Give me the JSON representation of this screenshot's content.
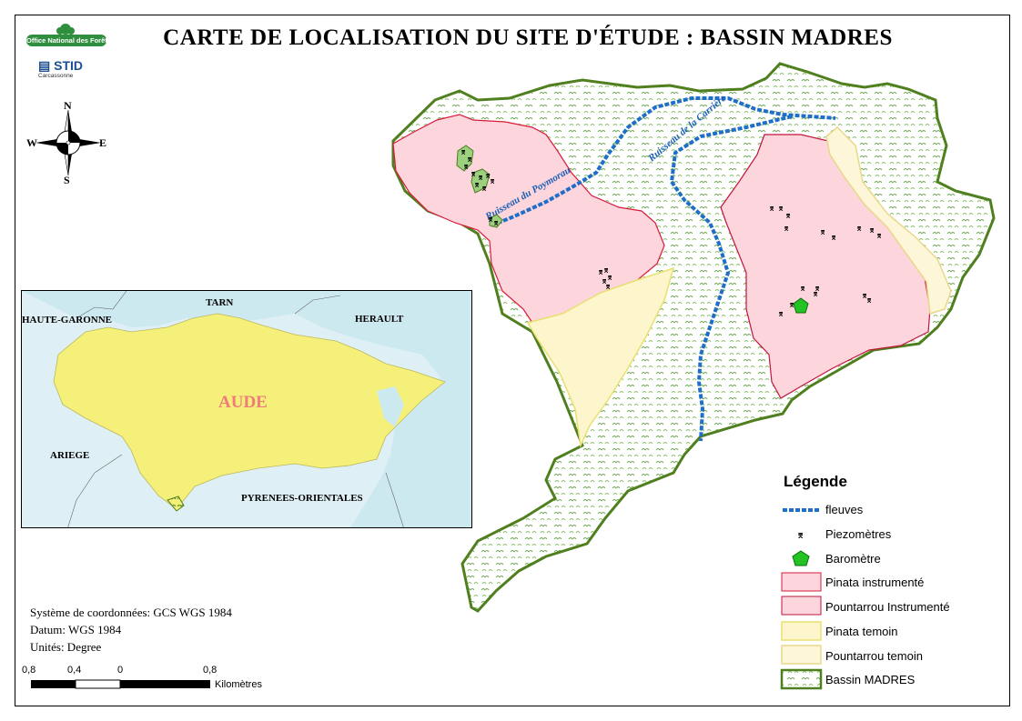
{
  "title": "CARTE DE  LOCALISATION  DU  SITE D'ÉTUDE : BASSIN  MADRES",
  "logos": {
    "onf": "Office National des Forêts",
    "stid": "STID",
    "stid_sub": "Carcassonne"
  },
  "compass": {
    "north": "N",
    "south": "S",
    "east": "E",
    "west": "W"
  },
  "rivers": [
    {
      "name": "Ruisseau du Poymorau"
    },
    {
      "name": "Ruisseau de la Carrière"
    }
  ],
  "inset": {
    "regions": [
      "HAUTE-GARONNE",
      "TARN",
      "HERAULT",
      "ARIEGE",
      "PYRENEES-ORIENTALES"
    ],
    "highlight": "AUDE"
  },
  "coordinate_info": {
    "system": "Système de coordonnées: GCS WGS 1984",
    "datum": "Datum: WGS 1984",
    "units": "Unités: Degree"
  },
  "scale_bar": {
    "ticks": [
      "0,8",
      "0,4",
      "0",
      "0,8"
    ],
    "unit": "Kilomètres"
  },
  "legend": {
    "title": "Légende",
    "items": [
      {
        "label": "fleuves",
        "symbol": "river-line",
        "color": "#1f6fc8"
      },
      {
        "label": "Piezomètres",
        "symbol": "piezometer-mark",
        "color": "#000000"
      },
      {
        "label": "Baromètre",
        "symbol": "pentagon",
        "color": "#22c322"
      },
      {
        "label": "Pinata instrumenté",
        "symbol": "fill",
        "color": "#fcd5dd",
        "border": "#d81b3b"
      },
      {
        "label": "Pountarrou Instrumenté",
        "symbol": "fill",
        "color": "#fcd5dd",
        "border": "#c0143c"
      },
      {
        "label": "Pinata temoin",
        "symbol": "fill",
        "color": "#fdf6c8",
        "border": "#e8e070"
      },
      {
        "label": "Pountarrou temoin",
        "symbol": "fill",
        "color": "#fdf6d8",
        "border": "#e8d88a"
      },
      {
        "label": "Bassin MADRES",
        "symbol": "pattern",
        "color": "#6aa84f",
        "border": "#4f7f1e"
      }
    ]
  },
  "colors": {
    "basin_border": "#4f7f1e",
    "zone_pink": "#fcd5dd",
    "zone_yellow": "#fdf6cc",
    "river": "#1f6fc8",
    "aude_fill": "#f5f07a",
    "sea": "#cde9f0"
  }
}
